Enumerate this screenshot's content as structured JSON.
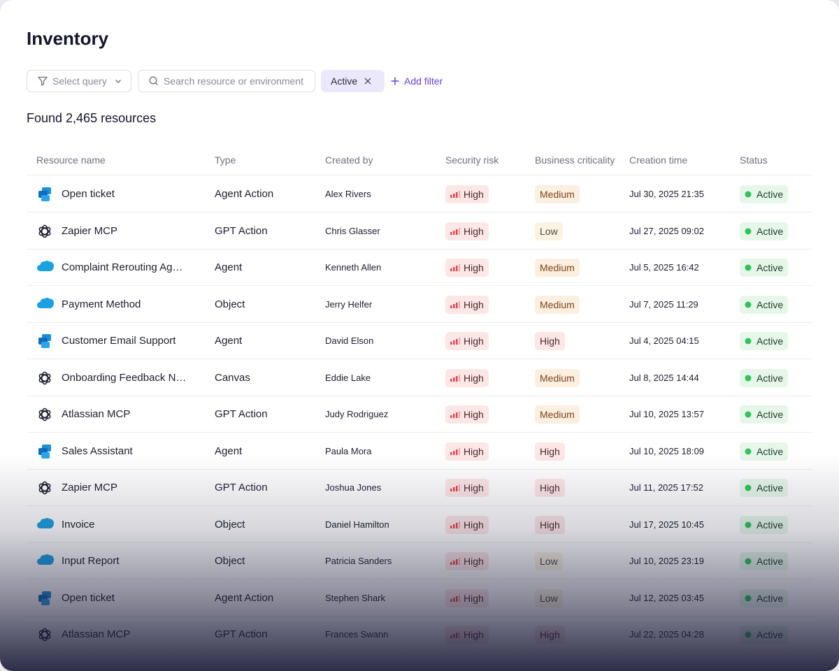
{
  "header": {
    "title": "Inventory"
  },
  "filters": {
    "query": "Select query",
    "search": "Search resource or environment",
    "chip": "Active",
    "add": "Add filter"
  },
  "summary": "Found 2,465 resources",
  "table": {
    "headers": [
      "Resource name",
      "Type",
      "Created by",
      "Security risk",
      "Business criticality",
      "Creation time",
      "Status"
    ],
    "rows": [
      [
        "Open ticket",
        "Agent Action",
        "Alex Rivers",
        "High",
        "Medium",
        "Jul 30, 2025 21:35",
        "Active"
      ],
      [
        "Zapier MCP",
        "GPT Action",
        "Chris Glasser",
        "High",
        "Low",
        "Jul 27, 2025 09:02",
        "Active"
      ],
      [
        "Complaint Rerouting Ag…",
        "Agent",
        "Kenneth Allen",
        "High",
        "Medium",
        "Jul 5, 2025 16:42",
        "Active"
      ],
      [
        "Payment Method",
        "Object",
        "Jerry Helfer",
        "High",
        "Medium",
        "Jul 7, 2025 11:29",
        "Active"
      ],
      [
        "Customer Email Support",
        "Agent",
        "David Elson",
        "High",
        "High",
        "Jul 4, 2025 04:15",
        "Active"
      ],
      [
        "Onboarding Feedback N…",
        "Canvas",
        "Eddie Lake",
        "High",
        "Medium",
        "Jul 8, 2025 14:44",
        "Active"
      ],
      [
        "Atlassian MCP",
        "GPT Action",
        "Judy Rodriguez",
        "High",
        "Medium",
        "Jul 10, 2025 13:57",
        "Active"
      ],
      [
        "Sales Assistant",
        "Agent",
        "Paula Mora",
        "High",
        "High",
        "Jul 10, 2025 18:09",
        "Active"
      ],
      [
        "Zapier MCP",
        "GPT Action",
        "Joshua Jones",
        "High",
        "High",
        "Jul 11, 2025 17:52",
        "Active"
      ],
      [
        "Invoice",
        "Object",
        "Daniel Hamilton",
        "High",
        "High",
        "Jul 17, 2025 10:45",
        "Active"
      ],
      [
        "Input Report",
        "Object",
        "Patricia Sanders",
        "High",
        "Low",
        "Jul 10, 2025 23:19",
        "Active"
      ],
      [
        "Open ticket",
        "Agent Action",
        "Stephen Shark",
        "High",
        "Low",
        "Jul 12, 2025 03:45",
        "Active"
      ],
      [
        "Atlassian MCP",
        "GPT Action",
        "Frances Swann",
        "High",
        "High",
        "Jul 22, 2025 04:28",
        "Active"
      ]
    ]
  }
}
